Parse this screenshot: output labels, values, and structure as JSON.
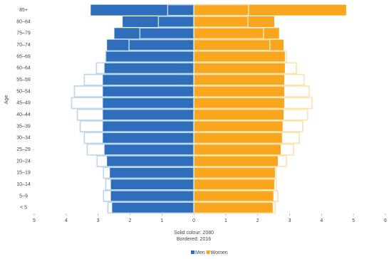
{
  "chart_data": {
    "type": "pyramid",
    "y_label": "Age",
    "categories": [
      "85+",
      "80–84",
      "75–79",
      "70–74",
      "65–69",
      "60–64",
      "55–59",
      "50–54",
      "45–49",
      "40–44",
      "35–39",
      "30–34",
      "25–29",
      "20–24",
      "15–19",
      "10–14",
      "5–9",
      "< 5"
    ],
    "series": [
      {
        "name": "Men",
        "color": "#2f6eba",
        "border_color": "#bdd7ee",
        "values": [
          -3.23,
          -2.23,
          -2.49,
          -2.72,
          -2.76,
          -2.8,
          -2.85,
          -2.85,
          -2.85,
          -2.85,
          -2.85,
          -2.85,
          -2.8,
          -2.72,
          -2.63,
          -2.6,
          -2.6,
          -2.56
        ],
        "bordered_values": [
          -0.82,
          -1.11,
          -1.69,
          -2.03,
          -2.76,
          -3.05,
          -3.43,
          -3.74,
          -3.83,
          -3.65,
          -3.56,
          -3.43,
          -3.34,
          -3.03,
          -2.83,
          -2.76,
          -2.83,
          -2.69
        ]
      },
      {
        "name": "Women",
        "color": "#f8a61e",
        "border_color": "#fde2b0",
        "values": [
          4.77,
          2.52,
          2.67,
          2.81,
          2.85,
          2.85,
          2.83,
          2.83,
          2.83,
          2.81,
          2.78,
          2.76,
          2.72,
          2.63,
          2.54,
          2.52,
          2.49,
          2.47
        ],
        "bordered_values": [
          1.71,
          1.69,
          2.18,
          2.38,
          2.9,
          3.21,
          3.45,
          3.61,
          3.7,
          3.56,
          3.41,
          3.3,
          3.12,
          2.9,
          2.58,
          2.58,
          2.63,
          2.54
        ]
      }
    ],
    "notes": [
      "Solid colour: 2080",
      "Bordered: 2016"
    ],
    "xlim": [
      -5,
      6
    ],
    "xticks": [
      {
        "value": -5,
        "label": "5"
      },
      {
        "value": -4,
        "label": "4"
      },
      {
        "value": -3,
        "label": "3"
      },
      {
        "value": -2,
        "label": "2"
      },
      {
        "value": -1,
        "label": "1"
      },
      0,
      1,
      2,
      3,
      4,
      5,
      6
    ],
    "legend": "bottom"
  }
}
